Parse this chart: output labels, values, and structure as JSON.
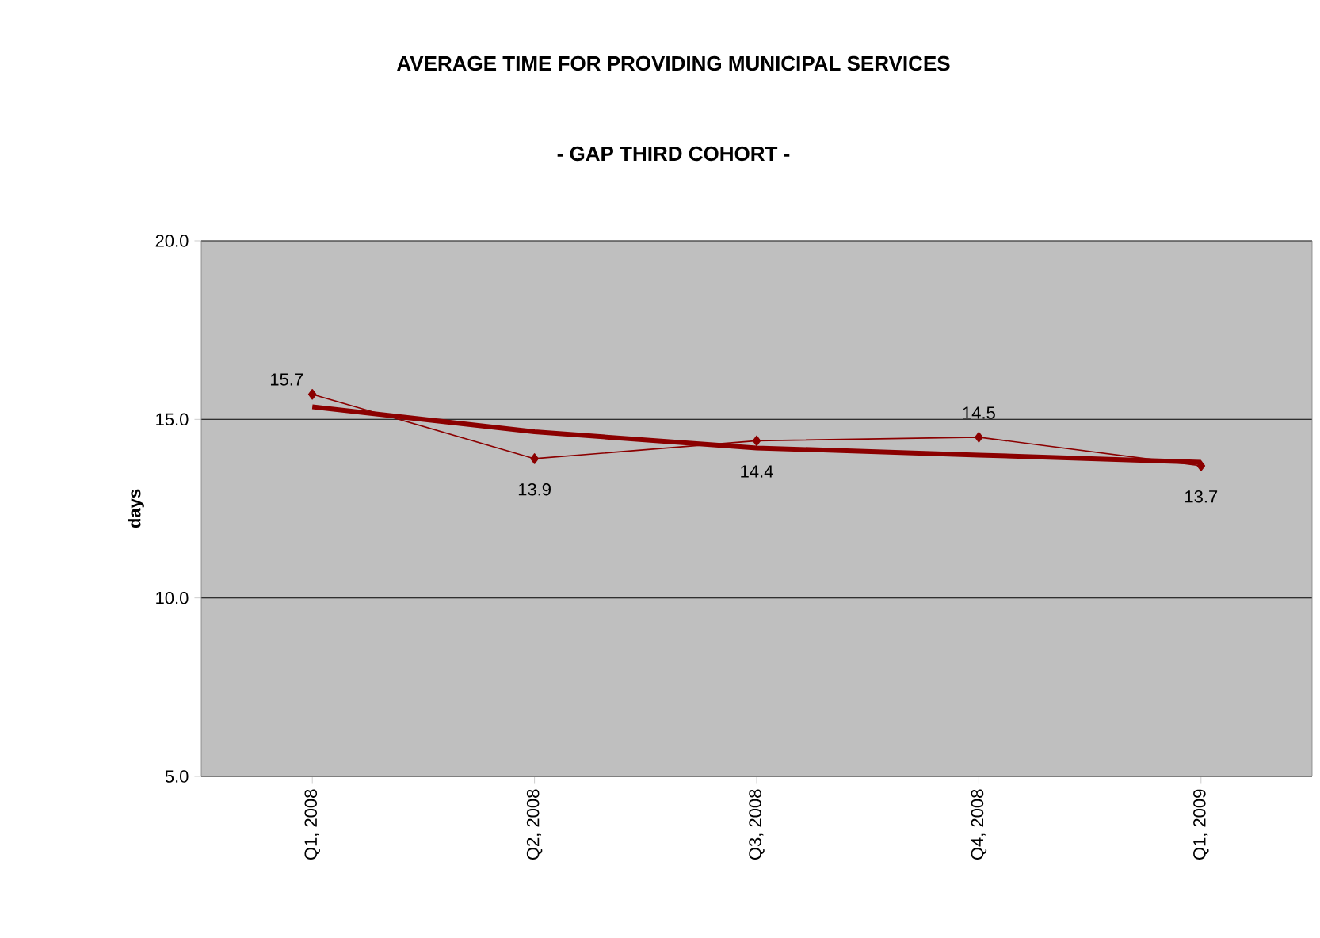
{
  "chart_data": {
    "type": "line",
    "title": "AVERAGE TIME FOR PROVIDING MUNICIPAL SERVICES",
    "subtitle": "- GAP  THIRD  COHORT -",
    "ylabel": "days",
    "categories": [
      "Q1, 2008",
      "Q2, 2008",
      "Q3, 2008",
      "Q4, 2008",
      "Q1, 2009"
    ],
    "series": [
      {
        "color": "#8b0000",
        "values": [
          15.7,
          13.9,
          14.4,
          14.5,
          13.7
        ],
        "marker": "diamond",
        "data_labels": true
      },
      {
        "type": "line",
        "color": "#8b0000",
        "values": [
          15.35,
          14.65,
          14.2,
          14.0,
          13.8
        ],
        "marker": "none"
      }
    ],
    "ylim": [
      5,
      20
    ],
    "yticks": [
      {
        "value": 5,
        "label": "5.0"
      },
      {
        "value": 10,
        "label": "10.0"
      },
      {
        "value": 15,
        "label": "15.0"
      },
      {
        "value": 20,
        "label": "20.0"
      }
    ],
    "grid": "y"
  }
}
